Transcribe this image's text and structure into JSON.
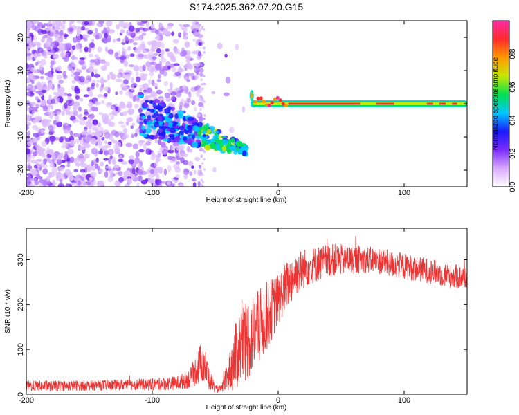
{
  "title": "S174.2025.362.07.20.G15",
  "chart_data": [
    {
      "type": "heatmap",
      "xlabel": "Height of straight line (km)",
      "ylabel": "Frequency (Hz)",
      "xlim": [
        -200,
        150
      ],
      "ylim": [
        -25,
        25
      ],
      "x_ticks": [
        -200,
        -100,
        0,
        100
      ],
      "y_ticks": [
        -20,
        -10,
        0,
        10,
        20
      ],
      "colorbar": {
        "label": "Normalized spectral amplitude",
        "range": [
          0,
          1
        ],
        "ticks": [
          0.0,
          0.2,
          0.4,
          0.6,
          0.8
        ],
        "colors": [
          "#ffffff",
          "#d8a8ff",
          "#7b2bff",
          "#1a1aff",
          "#00c8ff",
          "#00e050",
          "#c8e600",
          "#ff9900",
          "#ff2a2a",
          "#ff2aa8"
        ]
      },
      "regions": [
        {
          "name": "scattered noise",
          "x": [
            -200,
            -60
          ],
          "freq": [
            -25,
            25
          ],
          "amplitude": 0.15
        },
        {
          "name": "descending trace",
          "x": [
            -110,
            -25
          ],
          "freq_start": -3,
          "freq_end": -14,
          "amplitude": 0.35
        },
        {
          "name": "steady carrier",
          "x": [
            -22,
            150
          ],
          "freq": 0,
          "amplitude": 0.9
        }
      ]
    },
    {
      "type": "line",
      "xlabel": "Height of straight line (km)",
      "ylabel": "SNR (10 * v/v)",
      "xlim": [
        -200,
        150
      ],
      "ylim": [
        0,
        370
      ],
      "x_ticks": [
        -200,
        -100,
        0,
        100
      ],
      "y_ticks": [
        0,
        100,
        200,
        300
      ],
      "color": "#ee3333",
      "series": [
        {
          "name": "SNR",
          "x": [
            -200,
            -180,
            -160,
            -140,
            -120,
            -100,
            -80,
            -70,
            -60,
            -55,
            -50,
            -45,
            -40,
            -35,
            -30,
            -25,
            -20,
            -15,
            -10,
            -5,
            0,
            5,
            10,
            15,
            20,
            30,
            40,
            50,
            60,
            70,
            80,
            90,
            100,
            110,
            120,
            130,
            140,
            150
          ],
          "values": [
            18,
            18,
            19,
            20,
            21,
            22,
            25,
            35,
            75,
            38,
            12,
            12,
            40,
            75,
            110,
            120,
            135,
            150,
            170,
            190,
            210,
            235,
            255,
            270,
            280,
            290,
            298,
            300,
            300,
            300,
            298,
            290,
            285,
            280,
            275,
            268,
            262,
            260
          ],
          "noise_amplitude": [
            12,
            12,
            12,
            12,
            12,
            14,
            16,
            22,
            50,
            30,
            8,
            8,
            35,
            70,
            90,
            95,
            90,
            85,
            80,
            70,
            60,
            55,
            55,
            50,
            45,
            40,
            38,
            35,
            32,
            30,
            30,
            30,
            30,
            28,
            28,
            28,
            28,
            26
          ]
        }
      ]
    }
  ]
}
